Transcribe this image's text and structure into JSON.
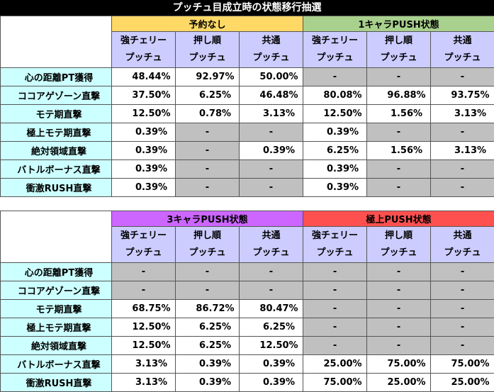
{
  "title": "プッチュ目成立時の状態移行抽選",
  "sub_headers": [
    [
      "強チェリー",
      "プッチュ"
    ],
    [
      "押し順",
      "プッチュ"
    ],
    [
      "共通",
      "プッチュ"
    ],
    [
      "強チェリー",
      "プッチュ"
    ],
    [
      "押し順",
      "プッチュ"
    ],
    [
      "共通",
      "プッチュ"
    ]
  ],
  "tables": [
    {
      "groups": [
        {
          "label": "予約なし",
          "color": "#ffd966"
        },
        {
          "label": "1キャラPUSH状態",
          "color": "#a9d18e"
        }
      ],
      "rows": [
        {
          "label": "心の距離PT獲得",
          "cells": [
            "48.44%",
            "92.97%",
            "50.00%",
            "-",
            "-",
            "-"
          ]
        },
        {
          "label": "ココアゲゾーン直撃",
          "cells": [
            "37.50%",
            "6.25%",
            "46.48%",
            "80.08%",
            "96.88%",
            "93.75%"
          ]
        },
        {
          "label": "モテ期直撃",
          "cells": [
            "12.50%",
            "0.78%",
            "3.13%",
            "12.50%",
            "1.56%",
            "3.13%"
          ]
        },
        {
          "label": "極上モテ期直撃",
          "cells": [
            "0.39%",
            "-",
            "-",
            "0.39%",
            "-",
            "-"
          ]
        },
        {
          "label": "絶対領域直撃",
          "cells": [
            "0.39%",
            "-",
            "0.39%",
            "6.25%",
            "1.56%",
            "3.13%"
          ]
        },
        {
          "label": "バトルボーナス直撃",
          "cells": [
            "0.39%",
            "-",
            "-",
            "0.39%",
            "-",
            "-"
          ]
        },
        {
          "label": "衝激RUSH直撃",
          "cells": [
            "0.39%",
            "-",
            "-",
            "0.39%",
            "-",
            "-"
          ]
        }
      ]
    },
    {
      "groups": [
        {
          "label": "3キャラPUSH状態",
          "color": "#cc66ff"
        },
        {
          "label": "極上PUSH状態",
          "color": "#ff5050"
        }
      ],
      "rows": [
        {
          "label": "心の距離PT獲得",
          "cells": [
            "-",
            "-",
            "-",
            "-",
            "-",
            "-"
          ]
        },
        {
          "label": "ココアゲゾーン直撃",
          "cells": [
            "-",
            "-",
            "-",
            "-",
            "-",
            "-"
          ]
        },
        {
          "label": "モテ期直撃",
          "cells": [
            "68.75%",
            "86.72%",
            "80.47%",
            "-",
            "-",
            "-"
          ]
        },
        {
          "label": "極上モテ期直撃",
          "cells": [
            "12.50%",
            "6.25%",
            "6.25%",
            "-",
            "-",
            "-"
          ]
        },
        {
          "label": "絶対領域直撃",
          "cells": [
            "12.50%",
            "6.25%",
            "12.50%",
            "-",
            "-",
            "-"
          ]
        },
        {
          "label": "バトルボーナス直撃",
          "cells": [
            "3.13%",
            "0.39%",
            "0.39%",
            "25.00%",
            "75.00%",
            "75.00%"
          ]
        },
        {
          "label": "衝激RUSH直撃",
          "cells": [
            "3.13%",
            "0.39%",
            "0.39%",
            "75.00%",
            "25.00%",
            "25.00%"
          ]
        }
      ]
    }
  ],
  "colors": {
    "row_label_bg": "#ccffff",
    "sub_header_bg": "#ccccff",
    "no_value_bg": "#c0c0c0",
    "title_bg": "#000000"
  }
}
